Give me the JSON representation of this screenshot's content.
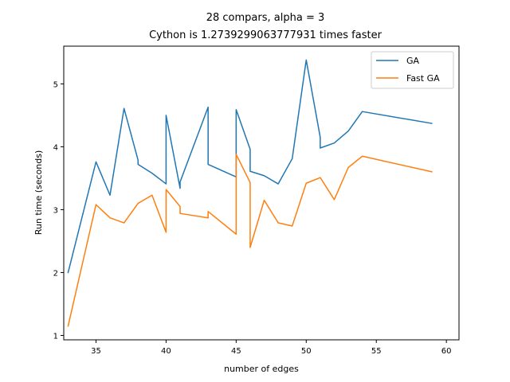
{
  "chart_data": {
    "type": "line",
    "title": "28 compars, alpha = 3",
    "subtitle": "Cython is 1.2739299063777931 times faster",
    "xlabel": "number of edges",
    "ylabel": "Run time (seconds)",
    "xlim": [
      32.7,
      60.9
    ],
    "ylim": [
      0.93,
      5.6
    ],
    "xticks": [
      35,
      40,
      45,
      50,
      55,
      60
    ],
    "yticks": [
      1,
      2,
      3,
      4,
      5
    ],
    "grid": false,
    "legend_position": "top-right",
    "series": [
      {
        "name": "GA",
        "color": "#1f77b4",
        "points": [
          [
            33,
            1.99
          ],
          [
            35,
            3.76
          ],
          [
            36,
            3.23
          ],
          [
            37,
            4.61
          ],
          [
            38,
            3.79
          ],
          [
            38,
            3.72
          ],
          [
            39,
            3.58
          ],
          [
            40,
            3.41
          ],
          [
            40,
            4.5
          ],
          [
            41,
            3.34
          ],
          [
            41,
            3.44
          ],
          [
            43,
            4.63
          ],
          [
            43,
            3.72
          ],
          [
            45,
            3.52
          ],
          [
            45,
            4.59
          ],
          [
            46,
            3.96
          ],
          [
            46,
            3.61
          ],
          [
            47,
            3.54
          ],
          [
            48,
            3.41
          ],
          [
            49,
            3.81
          ],
          [
            50,
            5.38
          ],
          [
            51,
            4.15
          ],
          [
            51,
            3.98
          ],
          [
            52,
            4.06
          ],
          [
            53,
            4.25
          ],
          [
            54,
            4.56
          ],
          [
            59,
            4.37
          ]
        ]
      },
      {
        "name": "Fast GA",
        "color": "#ff7f0e",
        "points": [
          [
            33,
            1.14
          ],
          [
            35,
            3.08
          ],
          [
            36,
            2.87
          ],
          [
            37,
            2.79
          ],
          [
            38,
            3.1
          ],
          [
            39,
            3.23
          ],
          [
            40,
            2.64
          ],
          [
            40,
            3.32
          ],
          [
            41,
            3.05
          ],
          [
            41,
            2.94
          ],
          [
            43,
            2.87
          ],
          [
            43,
            2.97
          ],
          [
            45,
            2.61
          ],
          [
            45,
            3.88
          ],
          [
            46,
            3.43
          ],
          [
            46,
            2.4
          ],
          [
            47,
            3.15
          ],
          [
            48,
            2.79
          ],
          [
            49,
            2.74
          ],
          [
            50,
            3.42
          ],
          [
            51,
            3.51
          ],
          [
            52,
            3.16
          ],
          [
            53,
            3.67
          ],
          [
            54,
            3.85
          ],
          [
            59,
            3.6
          ]
        ]
      }
    ]
  }
}
